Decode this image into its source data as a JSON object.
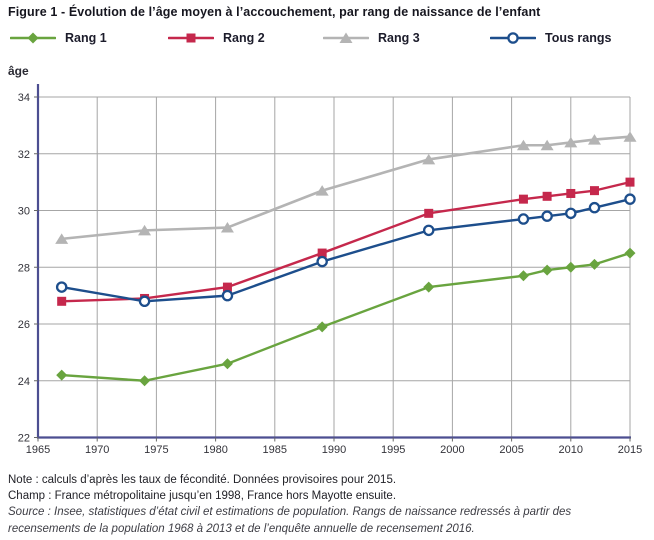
{
  "title": "Figure 1 - Évolution de l’âge moyen à l’accouchement, par rang de naissance de l’enfant",
  "chart_data": {
    "type": "line",
    "title": "Évolution de l’âge moyen à l’accouchement, par rang de naissance de l’enfant",
    "ylabel": "âge",
    "xlabel": "",
    "x": [
      1967,
      1974,
      1981,
      1989,
      1998,
      2006,
      2008,
      2010,
      2012,
      2015
    ],
    "series": [
      {
        "name": "Rang 1",
        "marker": "diamond",
        "color": "#69a43f",
        "values": [
          24.2,
          24.0,
          24.6,
          25.9,
          27.3,
          27.7,
          27.9,
          28.0,
          28.1,
          28.5
        ]
      },
      {
        "name": "Rang 2",
        "marker": "square",
        "color": "#c5284c",
        "values": [
          26.8,
          26.9,
          27.3,
          28.5,
          29.9,
          30.4,
          30.5,
          30.6,
          30.7,
          31.0
        ]
      },
      {
        "name": "Rang 3",
        "marker": "triangle",
        "color": "#b4b4b4",
        "values": [
          29.0,
          29.3,
          29.4,
          30.7,
          31.8,
          32.3,
          32.3,
          32.4,
          32.5,
          32.6
        ]
      },
      {
        "name": "Tous rangs",
        "marker": "circle-open",
        "color": "#1d4e8c",
        "values": [
          27.3,
          26.8,
          27.0,
          28.2,
          29.3,
          29.7,
          29.8,
          29.9,
          30.1,
          30.4
        ]
      }
    ],
    "xlim": [
      1965,
      2015
    ],
    "ylim": [
      22,
      34
    ],
    "x_ticks": [
      1965,
      1970,
      1975,
      1980,
      1985,
      1990,
      1995,
      2000,
      2005,
      2010,
      2015
    ],
    "y_ticks": [
      22,
      24,
      26,
      28,
      30,
      32,
      34
    ],
    "grid": true,
    "legend_position": "top",
    "grid_color": "#a6a6a6",
    "axis_color": "#4c4e91",
    "tick_color": "#33333a"
  },
  "footer": {
    "note": "Note : calculs d’après les taux de fécondité. Données provisoires pour 2015.",
    "champ": "Champ : France métropolitaine jusqu’en 1998, France hors Mayotte ensuite.",
    "source": "Source : Insee, statistiques d’état civil et estimations de population. Rangs de naissance redressés à partir des recensements de la population 1968 à 2013 et de l’enquête annuelle de recensement 2016."
  }
}
